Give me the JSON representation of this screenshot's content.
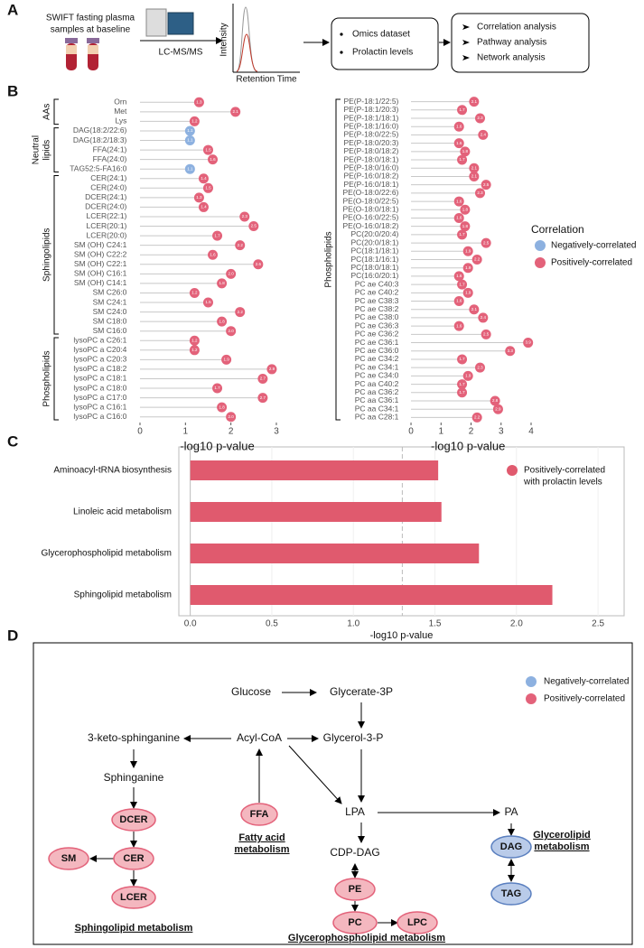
{
  "panel_labels": [
    "A",
    "B",
    "C",
    "D"
  ],
  "panel_a": {
    "sample_text": [
      "SWIFT fasting plasma",
      "samples at baseline"
    ],
    "method": "LC-MS/MS",
    "y_axis_label": "Intensity",
    "x_axis_label": "Retention Time",
    "datasets": [
      "Omics dataset",
      "Prolactin levels"
    ],
    "analyses": [
      "Correlation analysis",
      "Pathway analysis",
      "Network analysis"
    ]
  },
  "chart_data": [
    {
      "type": "lollipop",
      "xlabel": "-log10 p-value",
      "xlim": [
        -0.25,
        3.65
      ],
      "xticks": [
        0,
        1,
        2,
        3
      ],
      "groups": [
        {
          "name": [
            "AAs"
          ],
          "categories": [
            "Orn",
            "Met",
            "Lys"
          ],
          "values": [
            1.3,
            2.1,
            1.2
          ],
          "value_labels": [
            "1.3",
            "2.1",
            "1.2"
          ],
          "colors": [
            "#e3627a",
            "#e3627a",
            "#e3627a"
          ]
        },
        {
          "name": [
            "Neutral",
            "lipids"
          ],
          "categories": [
            "DAG(18:2/22:6)",
            "DAG(18:2/18:3)",
            "FFA(24:1)",
            "FFA(24:0)",
            "TAG52:5-FA16:0"
          ],
          "values": [
            1.1,
            1.1,
            1.5,
            1.6,
            1.1
          ],
          "value_labels": [
            "1.1",
            "1.1",
            "1.5",
            "1.6",
            "1.1"
          ],
          "colors": [
            "#8db1e0",
            "#8db1e0",
            "#e3627a",
            "#e3627a",
            "#8db1e0"
          ]
        },
        {
          "name": [
            "Sphingolipids"
          ],
          "categories": [
            "CER(24:1)",
            "CER(24:0)",
            "DCER(24:1)",
            "DCER(24:0)",
            "LCER(22:1)",
            "LCER(20:1)",
            "LCER(20:0)",
            "SM (OH) C24:1",
            "SM (OH) C22:2",
            "SM (OH) C22:1",
            "SM (OH) C16:1",
            "SM (OH) C14:1",
            "SM C26:0",
            "SM C24:1",
            "SM C24:0",
            "SM C18:0",
            "SM C16:0"
          ],
          "values": [
            1.4,
            1.5,
            1.3,
            1.4,
            2.3,
            2.5,
            1.7,
            2.2,
            1.6,
            2.6,
            2.0,
            1.8,
            1.2,
            1.5,
            2.2,
            1.8,
            2.0
          ],
          "value_labels": [
            "1.4",
            "1.5",
            "1.3",
            "1.4",
            "2.3",
            "2.5",
            "1.7",
            "2.2",
            "1.6",
            "2.6",
            "2.0",
            "1.8",
            "1.2",
            "1.5",
            "2.2",
            "1.8",
            "2.0"
          ],
          "colors": [
            "#e3627a",
            "#e3627a",
            "#e3627a",
            "#e3627a",
            "#e3627a",
            "#e3627a",
            "#e3627a",
            "#e3627a",
            "#e3627a",
            "#e3627a",
            "#e3627a",
            "#e3627a",
            "#e3627a",
            "#e3627a",
            "#e3627a",
            "#e3627a",
            "#e3627a"
          ]
        },
        {
          "name": [
            "Phospholipids"
          ],
          "categories": [
            "lysoPC a C26:1",
            "lysoPC a C20:4",
            "lysoPC a C20:3",
            "lysoPC a C18:2",
            "lysoPC a C18:1",
            "lysoPC a C18:0",
            "lysoPC a C17:0",
            "lysoPC a C16:1",
            "lysoPC a C16:0"
          ],
          "values": [
            1.2,
            1.2,
            1.9,
            2.9,
            2.7,
            1.7,
            2.7,
            1.8,
            2.0
          ],
          "value_labels": [
            "1.2",
            "1.2",
            "1.9",
            "2.9",
            "2.7",
            "1.7",
            "2.7",
            "1.8",
            "2.0"
          ],
          "colors": [
            "#e3627a",
            "#e3627a",
            "#e3627a",
            "#e3627a",
            "#e3627a",
            "#e3627a",
            "#e3627a",
            "#e3627a",
            "#e3627a"
          ]
        }
      ]
    },
    {
      "type": "lollipop",
      "xlabel": "-log10 p-value",
      "xlim": [
        -0.35,
        4.15
      ],
      "xticks": [
        0,
        1,
        2,
        3,
        4
      ],
      "legend": {
        "title": "Correlation",
        "entries": [
          {
            "name": "Negatively-correlated",
            "color": "#8db1e0"
          },
          {
            "name": "Positively-correlated",
            "color": "#e3627a"
          }
        ]
      },
      "groups": [
        {
          "name": [
            "Phospholipids"
          ],
          "categories": [
            "PE(P-18:1/22:5)",
            "PE(P-18:1/20:3)",
            "PE(P-18:1/18:1)",
            "PE(P-18:1/16:0)",
            "PE(P-18:0/22:5)",
            "PE(P-18:0/20:3)",
            "PE(P-18:0/18:2)",
            "PE(P-18:0/18:1)",
            "PE(P-18:0/16:0)",
            "PE(P-16:0/18:2)",
            "PE(P-16:0/18:1)",
            "PE(O-18:0/22:6)",
            "PE(O-18:0/22:5)",
            "PE(O-18:0/18:1)",
            "PE(O-16:0/22:5)",
            "PE(O-16:0/18:2)",
            "PC(20:0/20:4)",
            "PC(20:0/18:1)",
            "PC(18:1/18:1)",
            "PC(18:1/16:1)",
            "PC(18:0/18:1)",
            "PC(16:0/20:1)",
            "PC ae C40:3",
            "PC ae C40:2",
            "PC ae C38:3",
            "PC ae C38:2",
            "PC ae C38:0",
            "PC ae C36:3",
            "PC ae C36:2",
            "PC ae C36:1",
            "PC ae C36:0",
            "PC ae C34:2",
            "PC ae C34:1",
            "PC ae C34:0",
            "PC aa C40:2",
            "PC aa C36:2",
            "PC aa C36:1",
            "PC aa C34:1",
            "PC aa C28:1"
          ],
          "values": [
            2.1,
            1.7,
            2.3,
            1.6,
            2.4,
            1.6,
            1.8,
            1.7,
            2.1,
            2.1,
            2.5,
            2.3,
            1.6,
            1.8,
            1.6,
            1.8,
            1.7,
            2.5,
            1.9,
            2.2,
            1.9,
            1.6,
            1.7,
            1.9,
            1.6,
            2.1,
            2.4,
            1.6,
            2.5,
            3.9,
            3.3,
            1.7,
            2.3,
            1.9,
            1.7,
            1.7,
            2.8,
            2.9,
            2.2
          ],
          "value_labels": [
            "2.1",
            "1.7",
            "2.3",
            "1.6",
            "2.4",
            "1.6",
            "1.8",
            "1.7",
            "2.1",
            "2.1",
            "2.5",
            "2.3",
            "1.6",
            "1.8",
            "1.6",
            "1.8",
            "1.7",
            "2.5",
            "1.9",
            "2.2",
            "1.9",
            "1.6",
            "1.7",
            "1.9",
            "1.6",
            "2.1",
            "2.4",
            "1.6",
            "2.5",
            "3.9",
            "3.3",
            "1.7",
            "2.3",
            "1.9",
            "1.7",
            "1.7",
            "2.8",
            "2.9",
            "2.2"
          ],
          "colors": [
            "#e3627a",
            "#e3627a",
            "#e3627a",
            "#e3627a",
            "#e3627a",
            "#e3627a",
            "#e3627a",
            "#e3627a",
            "#e3627a",
            "#e3627a",
            "#e3627a",
            "#e3627a",
            "#e3627a",
            "#e3627a",
            "#e3627a",
            "#e3627a",
            "#e3627a",
            "#e3627a",
            "#e3627a",
            "#e3627a",
            "#e3627a",
            "#e3627a",
            "#e3627a",
            "#e3627a",
            "#e3627a",
            "#e3627a",
            "#e3627a",
            "#e3627a",
            "#e3627a",
            "#e3627a",
            "#e3627a",
            "#e3627a",
            "#e3627a",
            "#e3627a",
            "#e3627a",
            "#e3627a",
            "#e3627a",
            "#e3627a",
            "#e3627a"
          ]
        }
      ]
    },
    {
      "type": "hbar",
      "xlabel": "-log10 p-value",
      "categories": [
        "Aminoacyl-tRNA biosynthesis",
        "Linoleic acid metabolism",
        "Glycerophospholipid metabolism",
        "Sphingolipid metabolism"
      ],
      "series": [
        {
          "name": [
            "Positively-correlated",
            "with prolactin levels"
          ],
          "color": "#e05a6e",
          "values": [
            1.52,
            1.54,
            1.77,
            2.22
          ]
        }
      ],
      "xlim": [
        -0.07,
        2.66
      ],
      "xticks": [
        {
          "value": 0,
          "label": "0.0"
        },
        {
          "value": 0.5,
          "label": "0.5"
        },
        {
          "value": 1,
          "label": "1.0"
        },
        {
          "value": 1.5,
          "label": "1.5"
        },
        {
          "value": 2,
          "label": "2.0"
        },
        {
          "value": 2.5,
          "label": "2.5"
        }
      ],
      "reference_line": 1.3,
      "grid": true
    }
  ],
  "panel_d": {
    "nodes": [
      "Glucose",
      "Glycerate-3P",
      "Glycerol-3-P",
      "Acyl-CoA",
      "3-keto-sphinganine",
      "Sphinganine",
      "LPA",
      "PA",
      "CDP-DAG"
    ],
    "metabolites": [
      {
        "label": "FFA",
        "color": "#e3627a"
      },
      {
        "label": "DCER",
        "color": "#e3627a"
      },
      {
        "label": "CER",
        "color": "#e3627a"
      },
      {
        "label": "SM",
        "color": "#e3627a"
      },
      {
        "label": "LCER",
        "color": "#e3627a"
      },
      {
        "label": "PE",
        "color": "#e3627a"
      },
      {
        "label": "PC",
        "color": "#e3627a"
      },
      {
        "label": "LPC",
        "color": "#e3627a"
      },
      {
        "label": "DAG",
        "color": "#5a7fbf"
      },
      {
        "label": "TAG",
        "color": "#5a7fbf"
      }
    ],
    "captions": [
      [
        "Fatty acid",
        "metabolism"
      ],
      [
        "Sphingolipid metabolism"
      ],
      [
        "Glycerophospholipid metabolism"
      ],
      [
        "Glycerolipid",
        "metabolism"
      ]
    ],
    "legend": [
      {
        "name": "Negatively-correlated",
        "color": "#8db1e0"
      },
      {
        "name": "Positively-correlated",
        "color": "#e3627a"
      }
    ]
  }
}
